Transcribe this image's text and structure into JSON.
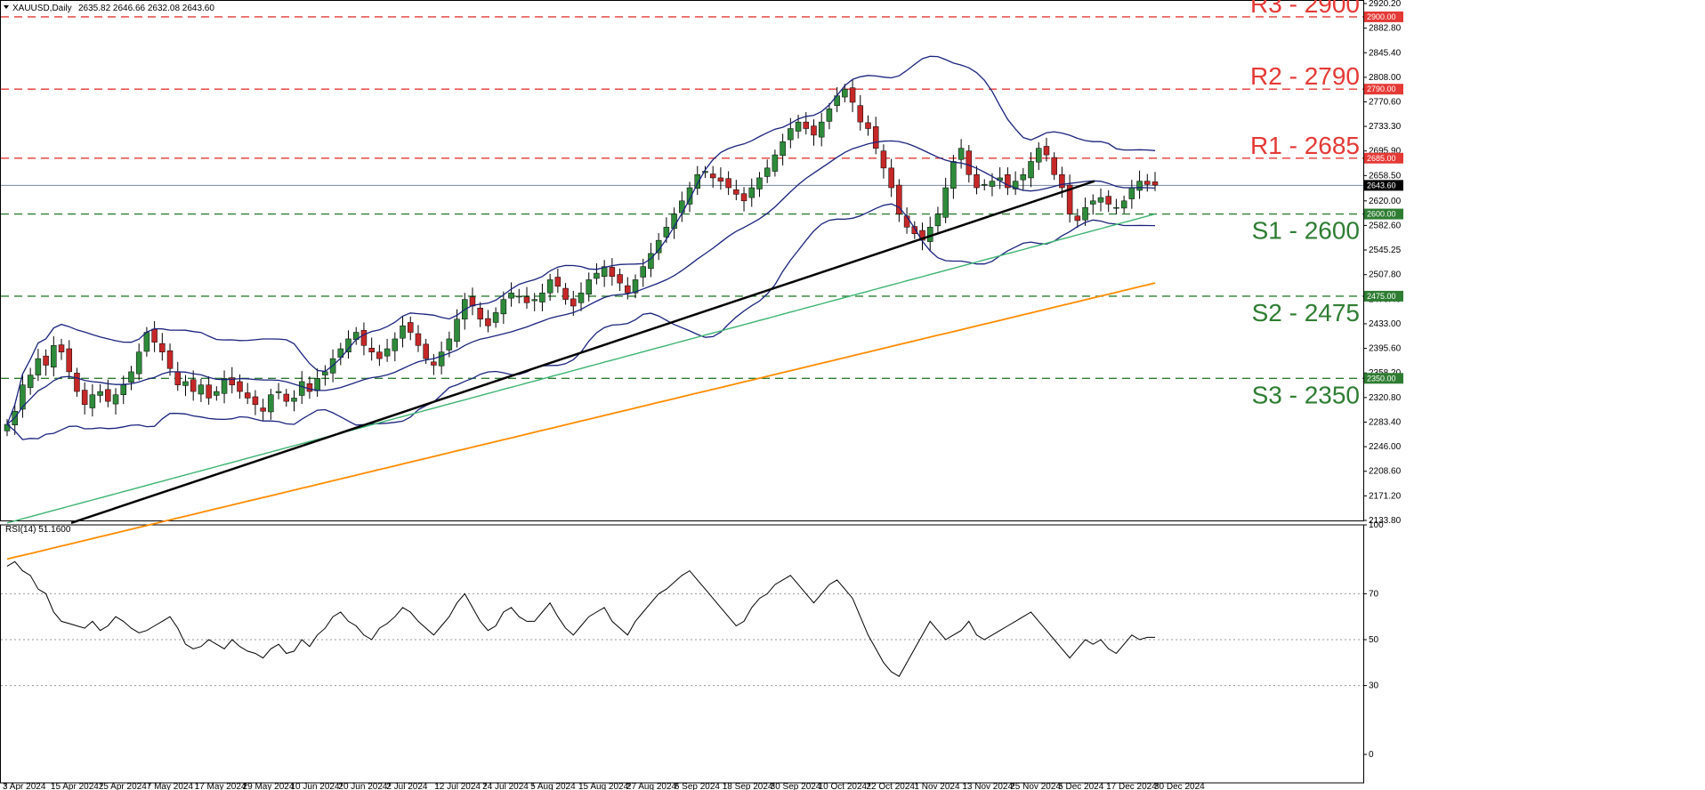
{
  "header": {
    "symbol_label": "XAUUSD,Daily",
    "ohlc": "2635.82 2646.66 2632.08 2643.60"
  },
  "indicator": {
    "label": "RSI(14) 51.1600"
  },
  "colors": {
    "up_candle": "#2e8b3a",
    "down_candle": "#c62828",
    "bollinger": "#1a237e",
    "ma_green": "#3cb371",
    "ma_orange": "#ff8c00",
    "trendline": "#000000",
    "resistance": "#e53935",
    "support": "#2e7d32",
    "price_tag_bg": "#000000"
  },
  "chart_data": {
    "type": "candlestick",
    "title": "",
    "y_axis": {
      "ylim": [
        2133.8,
        2920.2
      ],
      "ticks": [
        2920.2,
        2882.8,
        2845.4,
        2808.0,
        2770.6,
        2733.3,
        2695.9,
        2658.5,
        2620.0,
        2582.6,
        2545.25,
        2507.8,
        2470.4,
        2433.0,
        2395.6,
        2358.2,
        2320.8,
        2283.4,
        2246.0,
        2208.6,
        2171.2,
        2133.8
      ]
    },
    "x_axis": {
      "dates": [
        "3 Apr 2024",
        "15 Apr 2024",
        "25 Apr 2024",
        "7 May 2024",
        "17 May 2024",
        "29 May 2024",
        "10 Jun 2024",
        "20 Jun 2024",
        "2 Jul 2024",
        "12 Jul 2024",
        "24 Jul 2024",
        "5 Aug 2024",
        "15 Aug 2024",
        "27 Aug 2024",
        "6 Sep 2024",
        "18 Sep 2024",
        "30 Sep 2024",
        "10 Oct 2024",
        "22 Oct 2024",
        "1 Nov 2024",
        "13 Nov 2024",
        "25 Nov 2024",
        "5 Dec 2024",
        "17 Dec 2024",
        "30 Dec 2024"
      ]
    },
    "levels": [
      {
        "name": "R3 - 2900",
        "price": 2900,
        "kind": "resistance",
        "tag": "2900.00"
      },
      {
        "name": "R2 - 2790",
        "price": 2790,
        "kind": "resistance",
        "tag": "2790.00"
      },
      {
        "name": "R1 - 2685",
        "price": 2685,
        "kind": "resistance",
        "tag": "2685.00"
      },
      {
        "name": "S1 - 2600",
        "price": 2600,
        "kind": "support",
        "tag": "2600.00"
      },
      {
        "name": "S2 - 2475",
        "price": 2475,
        "kind": "support",
        "tag": "2475.00"
      },
      {
        "name": "S3 - 2350",
        "price": 2350,
        "kind": "support",
        "tag": "2350.00"
      }
    ],
    "current_price": {
      "price": 2643.6,
      "tag": "2643.60"
    },
    "close_series": [
      2280,
      2300,
      2340,
      2355,
      2380,
      2370,
      2400,
      2390,
      2360,
      2330,
      2310,
      2325,
      2330,
      2315,
      2325,
      2340,
      2360,
      2390,
      2420,
      2405,
      2390,
      2365,
      2340,
      2345,
      2330,
      2340,
      2320,
      2330,
      2350,
      2340,
      2330,
      2320,
      2310,
      2300,
      2325,
      2330,
      2315,
      2320,
      2345,
      2330,
      2350,
      2360,
      2380,
      2395,
      2410,
      2420,
      2400,
      2390,
      2380,
      2395,
      2410,
      2430,
      2420,
      2400,
      2380,
      2370,
      2390,
      2410,
      2440,
      2470,
      2460,
      2440,
      2430,
      2450,
      2470,
      2480,
      2475,
      2465,
      2470,
      2480,
      2500,
      2490,
      2470,
      2460,
      2480,
      2500,
      2510,
      2520,
      2505,
      2495,
      2480,
      2500,
      2520,
      2540,
      2560,
      2580,
      2600,
      2620,
      2640,
      2660,
      2665,
      2655,
      2650,
      2640,
      2630,
      2620,
      2640,
      2655,
      2670,
      2690,
      2710,
      2730,
      2740,
      2730,
      2720,
      2740,
      2760,
      2780,
      2790,
      2770,
      2740,
      2730,
      2700,
      2670,
      2640,
      2600,
      2580,
      2570,
      2560,
      2580,
      2600,
      2640,
      2680,
      2700,
      2660,
      2640,
      2645,
      2650,
      2655,
      2640,
      2650,
      2660,
      2680,
      2700,
      2690,
      2660,
      2640,
      2600,
      2590,
      2610,
      2620,
      2625,
      2615,
      2610,
      2620,
      2640,
      2650,
      2645,
      2644
    ],
    "trendline": {
      "x": [
        "3 Apr 2024",
        "17 Dec 2024"
      ],
      "y": [
        2130,
        2650
      ]
    },
    "rsi": {
      "ylim": [
        0,
        100
      ],
      "ticks": [
        100,
        70,
        50,
        30,
        0
      ],
      "values": [
        82,
        84,
        80,
        78,
        72,
        70,
        62,
        58,
        57,
        56,
        55,
        58,
        54,
        56,
        60,
        58,
        55,
        53,
        54,
        56,
        58,
        60,
        55,
        48,
        46,
        47,
        50,
        48,
        46,
        50,
        47,
        45,
        44,
        42,
        46,
        48,
        44,
        45,
        50,
        47,
        52,
        55,
        60,
        62,
        58,
        56,
        52,
        50,
        55,
        57,
        60,
        64,
        62,
        58,
        55,
        52,
        56,
        60,
        66,
        70,
        64,
        58,
        54,
        56,
        62,
        64,
        60,
        58,
        58,
        62,
        66,
        60,
        55,
        52,
        56,
        60,
        62,
        64,
        58,
        55,
        52,
        58,
        62,
        66,
        70,
        72,
        75,
        78,
        80,
        76,
        72,
        68,
        64,
        60,
        56,
        58,
        64,
        68,
        70,
        74,
        76,
        78,
        74,
        70,
        66,
        70,
        74,
        76,
        72,
        68,
        60,
        52,
        46,
        40,
        36,
        34,
        40,
        46,
        52,
        58,
        54,
        50,
        52,
        54,
        58,
        52,
        50,
        52,
        54,
        56,
        58,
        60,
        62,
        58,
        54,
        50,
        46,
        42,
        46,
        50,
        48,
        50,
        46,
        44,
        48,
        52,
        50,
        51,
        51
      ]
    }
  }
}
